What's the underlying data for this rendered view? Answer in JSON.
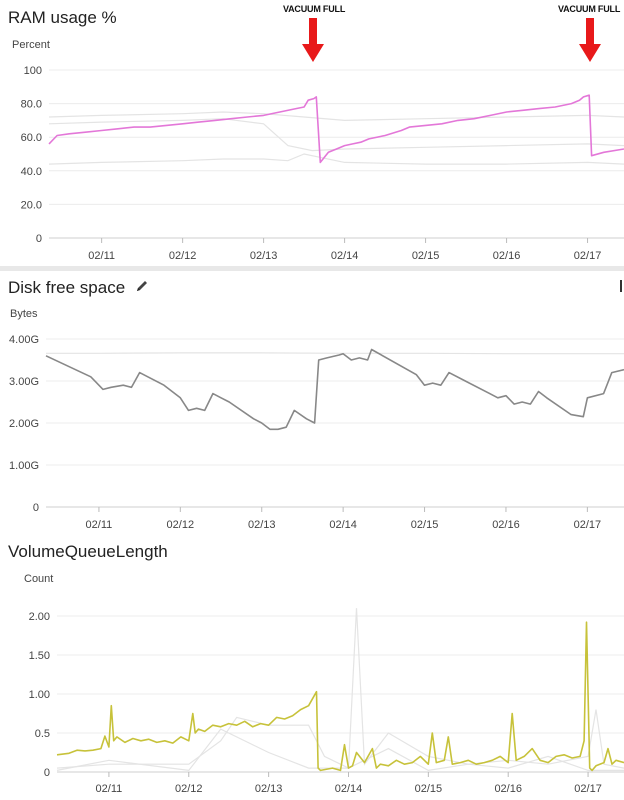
{
  "chart_data": [
    {
      "type": "line",
      "title": "RAM usage %",
      "ylabel": "Percent",
      "ylim": [
        0,
        100
      ],
      "yticks": [
        "0",
        "20.0",
        "40.0",
        "60.0",
        "80.0",
        "100"
      ],
      "xlim": [
        10.35,
        17.45
      ],
      "xticks": [
        {
          "x": 11,
          "label": "02/11"
        },
        {
          "x": 12,
          "label": "02/12"
        },
        {
          "x": 13,
          "label": "02/13"
        },
        {
          "x": 14,
          "label": "02/14"
        },
        {
          "x": 15,
          "label": "02/15"
        },
        {
          "x": 16,
          "label": "02/16"
        },
        {
          "x": 17,
          "label": "02/17"
        }
      ],
      "annotations": [
        {
          "text": "VACUUM FULL",
          "x": 13.6
        },
        {
          "text": "VACUUM FULL",
          "x": 17.0
        }
      ],
      "color": "#e377d8",
      "series": [
        {
          "x": [
            10.35,
            10.45,
            10.6,
            10.8,
            11.0,
            11.2,
            11.4,
            11.6,
            11.8,
            12.0,
            12.2,
            12.4,
            12.6,
            12.8,
            13.0,
            13.2,
            13.4,
            13.5,
            13.55,
            13.62,
            13.65,
            13.7,
            13.8,
            13.9,
            14.0,
            14.1,
            14.2,
            14.3,
            14.5,
            14.7,
            14.8,
            15.0,
            15.2,
            15.4,
            15.6,
            15.8,
            16.0,
            16.2,
            16.4,
            16.6,
            16.8,
            16.9,
            16.95,
            17.02,
            17.05,
            17.2,
            17.45
          ],
          "y": [
            56,
            61,
            62,
            63,
            64,
            65,
            66,
            66,
            67,
            68,
            69,
            70,
            71,
            72,
            73,
            75,
            77,
            78,
            82,
            83,
            84,
            45,
            51,
            53,
            55,
            56,
            57,
            59,
            61,
            64,
            66,
            67,
            68,
            70,
            71,
            73,
            75,
            76,
            77,
            78,
            80,
            82,
            84,
            85,
            49,
            51,
            53
          ]
        }
      ],
      "background_series": [
        {
          "x": [
            10.35,
            11.0,
            12.0,
            12.5,
            13.0,
            13.5,
            14.0,
            15.0,
            16.0,
            17.0,
            17.45
          ],
          "y": [
            72,
            73,
            74,
            75,
            74,
            72,
            70,
            71,
            72,
            73,
            72
          ]
        },
        {
          "x": [
            10.35,
            11.0,
            12.0,
            12.5,
            13.0,
            13.3,
            13.6,
            14.0,
            15.0,
            16.0,
            17.0,
            17.45
          ],
          "y": [
            68,
            69,
            70,
            71,
            68,
            55,
            52,
            53,
            54,
            55,
            56,
            55
          ]
        },
        {
          "x": [
            10.35,
            11.0,
            12.0,
            12.5,
            13.0,
            13.3,
            13.5,
            14.0,
            15.0,
            16.0,
            17.0,
            17.45
          ],
          "y": [
            44,
            45,
            46,
            47,
            47,
            46,
            50,
            45,
            44,
            44,
            45,
            44
          ]
        }
      ]
    },
    {
      "type": "line",
      "title": "Disk free space",
      "ylabel": "Bytes",
      "ylim": [
        0,
        4.0
      ],
      "yticks": [
        "0",
        "1.00G",
        "2.00G",
        "3.00G",
        "4.00G"
      ],
      "xlim": [
        10.35,
        17.45
      ],
      "xticks": [
        {
          "x": 11,
          "label": "02/11"
        },
        {
          "x": 12,
          "label": "02/12"
        },
        {
          "x": 13,
          "label": "02/13"
        },
        {
          "x": 14,
          "label": "02/14"
        },
        {
          "x": 15,
          "label": "02/15"
        },
        {
          "x": 16,
          "label": "02/16"
        },
        {
          "x": 17,
          "label": "02/17"
        }
      ],
      "color": "#888888",
      "series": [
        {
          "x": [
            10.35,
            10.9,
            11.05,
            11.15,
            11.3,
            11.4,
            11.5,
            11.6,
            11.8,
            12.0,
            12.1,
            12.2,
            12.3,
            12.4,
            12.5,
            12.6,
            12.9,
            13.0,
            13.1,
            13.2,
            13.3,
            13.4,
            13.55,
            13.65,
            13.7,
            13.8,
            13.95,
            14.0,
            14.1,
            14.2,
            14.3,
            14.35,
            14.9,
            15.0,
            15.1,
            15.2,
            15.3,
            15.5,
            15.8,
            15.9,
            16.0,
            16.1,
            16.2,
            16.3,
            16.4,
            16.5,
            16.8,
            16.95,
            17.0,
            17.2,
            17.3,
            17.45
          ],
          "y": [
            3.6,
            3.1,
            2.8,
            2.85,
            2.9,
            2.85,
            3.2,
            3.1,
            2.9,
            2.6,
            2.3,
            2.35,
            2.3,
            2.7,
            2.6,
            2.5,
            2.1,
            2.0,
            1.85,
            1.85,
            1.9,
            2.3,
            2.1,
            2.0,
            3.5,
            3.55,
            3.62,
            3.65,
            3.5,
            3.55,
            3.5,
            3.75,
            3.15,
            2.9,
            2.95,
            2.9,
            3.2,
            3.0,
            2.7,
            2.6,
            2.65,
            2.45,
            2.5,
            2.45,
            2.75,
            2.6,
            2.2,
            2.15,
            2.6,
            2.7,
            3.2,
            3.27
          ]
        }
      ],
      "background_series": [
        {
          "x": [
            10.35,
            11.0,
            12.0,
            13.0,
            14.0,
            15.0,
            16.0,
            17.0,
            17.45
          ],
          "y": [
            3.66,
            3.66,
            3.67,
            3.67,
            3.66,
            3.66,
            3.65,
            3.65,
            3.65
          ]
        }
      ]
    },
    {
      "type": "line",
      "title": "VolumeQueueLength",
      "ylabel": "Count",
      "ylim": [
        0,
        2.0
      ],
      "yticks": [
        "0",
        "0.5",
        "1.00",
        "1.50",
        "2.00"
      ],
      "xlim": [
        10.35,
        17.45
      ],
      "xticks": [
        {
          "x": 11,
          "label": "02/11"
        },
        {
          "x": 12,
          "label": "02/12"
        },
        {
          "x": 13,
          "label": "02/13"
        },
        {
          "x": 14,
          "label": "02/14"
        },
        {
          "x": 15,
          "label": "02/15"
        },
        {
          "x": 16,
          "label": "02/16"
        },
        {
          "x": 17,
          "label": "02/17"
        }
      ],
      "color": "#c7c23a",
      "series": [
        {
          "x": [
            10.35,
            10.5,
            10.6,
            10.7,
            10.8,
            10.9,
            10.95,
            11.0,
            11.03,
            11.06,
            11.1,
            11.2,
            11.3,
            11.4,
            11.5,
            11.6,
            11.7,
            11.8,
            11.9,
            12.0,
            12.05,
            12.08,
            12.12,
            12.2,
            12.3,
            12.4,
            12.5,
            12.6,
            12.7,
            12.8,
            12.9,
            13.0,
            13.1,
            13.2,
            13.3,
            13.4,
            13.5,
            13.6,
            13.62,
            13.65,
            13.8,
            13.9,
            13.95,
            14.0,
            14.05,
            14.1,
            14.2,
            14.3,
            14.35,
            14.4,
            14.5,
            14.6,
            14.7,
            14.8,
            14.9,
            15.0,
            15.05,
            15.1,
            15.2,
            15.25,
            15.3,
            15.4,
            15.5,
            15.6,
            15.7,
            15.8,
            15.9,
            16.0,
            16.05,
            16.1,
            16.2,
            16.3,
            16.4,
            16.5,
            16.6,
            16.7,
            16.8,
            16.9,
            16.95,
            16.98,
            17.02,
            17.05,
            17.1,
            17.2,
            17.25,
            17.3,
            17.35,
            17.45
          ],
          "y": [
            0.22,
            0.24,
            0.28,
            0.27,
            0.28,
            0.3,
            0.46,
            0.32,
            0.85,
            0.4,
            0.45,
            0.38,
            0.43,
            0.4,
            0.42,
            0.38,
            0.4,
            0.37,
            0.45,
            0.4,
            0.75,
            0.5,
            0.55,
            0.52,
            0.6,
            0.58,
            0.62,
            0.6,
            0.65,
            0.58,
            0.62,
            0.6,
            0.7,
            0.68,
            0.72,
            0.8,
            0.85,
            1.03,
            0.05,
            0.02,
            0.05,
            0.02,
            0.35,
            0.05,
            0.08,
            0.25,
            0.12,
            0.3,
            0.05,
            0.1,
            0.08,
            0.15,
            0.1,
            0.12,
            0.2,
            0.1,
            0.5,
            0.12,
            0.15,
            0.45,
            0.1,
            0.12,
            0.15,
            0.1,
            0.12,
            0.15,
            0.2,
            0.12,
            0.75,
            0.15,
            0.2,
            0.3,
            0.15,
            0.12,
            0.2,
            0.22,
            0.18,
            0.2,
            0.4,
            1.92,
            0.05,
            0.02,
            0.08,
            0.12,
            0.3,
            0.1,
            0.15,
            0.12
          ]
        }
      ],
      "background_series": [
        {
          "x": [
            10.35,
            11.0,
            12.0,
            12.4,
            12.6,
            13.0,
            13.5,
            13.7,
            14.0,
            14.1,
            14.2,
            14.5,
            15.0,
            15.5,
            16.0,
            16.5,
            17.0,
            17.1,
            17.2,
            17.45
          ],
          "y": [
            0.05,
            0.1,
            0.1,
            0.4,
            0.7,
            0.6,
            0.6,
            0.2,
            0.05,
            2.1,
            0.1,
            0.5,
            0.2,
            0.1,
            0.15,
            0.1,
            0.2,
            0.8,
            0.1,
            0.05
          ]
        },
        {
          "x": [
            10.35,
            11.0,
            12.0,
            12.4,
            13.0,
            13.5,
            14.0,
            14.5,
            15.0,
            15.5,
            16.0,
            16.5,
            17.0,
            17.45
          ],
          "y": [
            0.02,
            0.15,
            0.02,
            0.55,
            0.25,
            0.05,
            0.05,
            0.3,
            0.02,
            0.1,
            0.05,
            0.2,
            0.02,
            0.02
          ]
        }
      ]
    }
  ]
}
